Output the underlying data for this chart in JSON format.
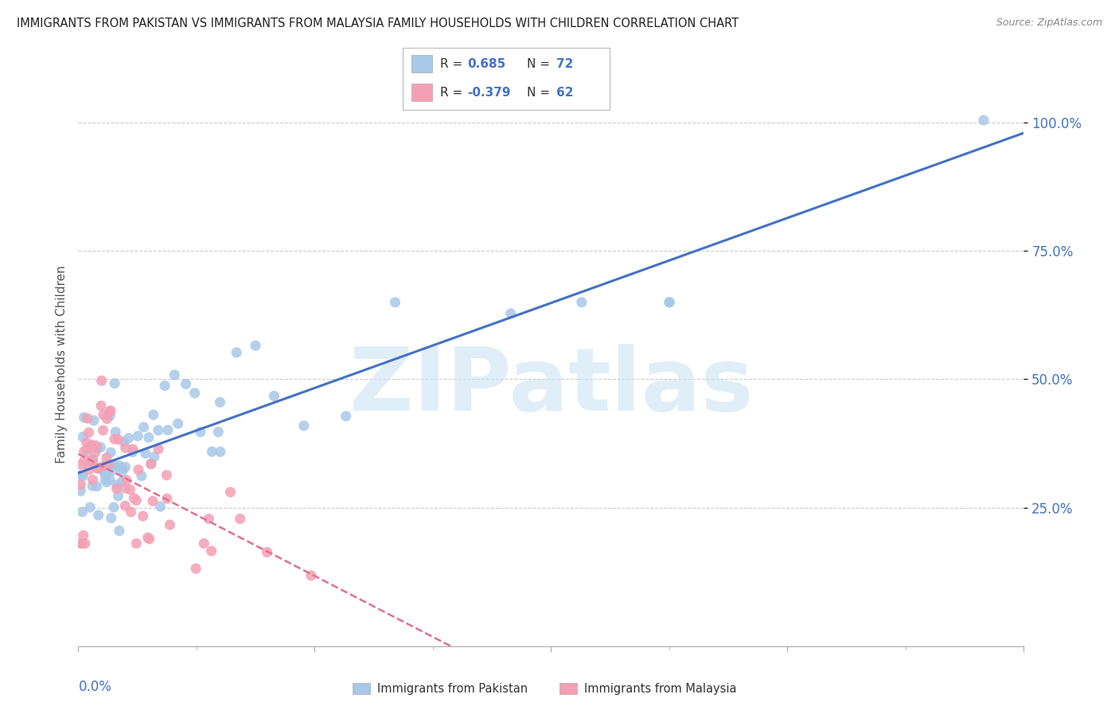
{
  "title": "IMMIGRANTS FROM PAKISTAN VS IMMIGRANTS FROM MALAYSIA FAMILY HOUSEHOLDS WITH CHILDREN CORRELATION CHART",
  "source": "Source: ZipAtlas.com",
  "ylabel": "Family Households with Children",
  "ytick_labels": [
    "25.0%",
    "50.0%",
    "75.0%",
    "100.0%"
  ],
  "ytick_vals": [
    0.25,
    0.5,
    0.75,
    1.0
  ],
  "xmin": 0.0,
  "xmax": 0.4,
  "ymin": -0.02,
  "ymax": 1.08,
  "pakistan_R": 0.685,
  "pakistan_N": 72,
  "malaysia_R": -0.379,
  "malaysia_N": 62,
  "pakistan_color": "#a8c8e8",
  "malaysia_color": "#f4a0b4",
  "pakistan_line_color": "#4472c4",
  "malaysia_line_color": "#e07090",
  "watermark_text": "ZIPatlas",
  "watermark_color": "#cce4f4",
  "background_color": "#ffffff",
  "grid_color": "#cccccc",
  "tick_label_color": "#4472c4",
  "title_color": "#222222",
  "source_color": "#888888"
}
